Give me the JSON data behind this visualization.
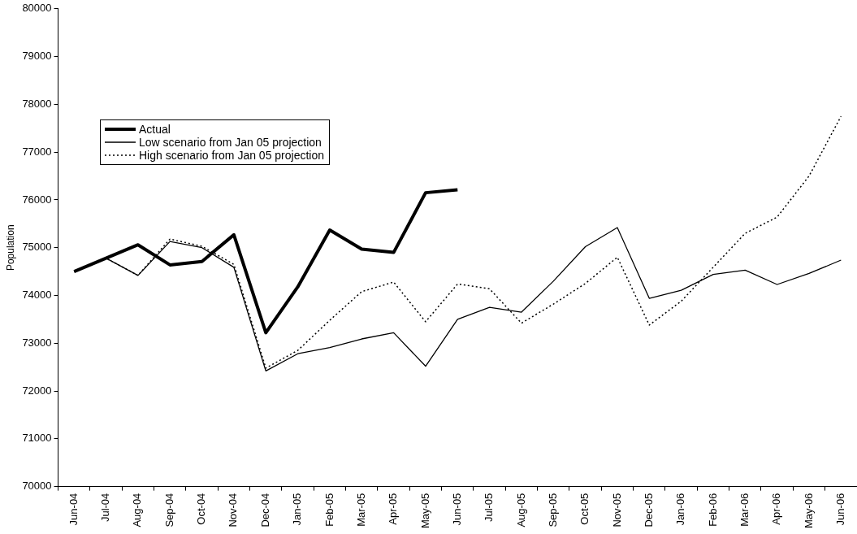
{
  "chart_data": {
    "type": "line",
    "ylabel": "Population",
    "categories": [
      "Jun-04",
      "Jul-04",
      "Aug-04",
      "Sep-04",
      "Oct-04",
      "Nov-04",
      "Dec-04",
      "Jan-05",
      "Feb-05",
      "Mar-05",
      "Apr-05",
      "May-05",
      "Jun-05",
      "Jul-05",
      "Aug-05",
      "Sep-05",
      "Oct-05",
      "Nov-05",
      "Dec-05",
      "Jan-06",
      "Feb-06",
      "Mar-06",
      "Apr-06",
      "May-06",
      "Jun-06"
    ],
    "series": [
      {
        "name": "Actual",
        "color": "#000000",
        "line_style": "solid",
        "values": [
          74500,
          74780,
          75060,
          74640,
          74710,
          75270,
          73220,
          74180,
          75370,
          74970,
          74900,
          76150,
          76210,
          null,
          null,
          null,
          null,
          null,
          null,
          null,
          null,
          null,
          null,
          null,
          null
        ]
      },
      {
        "name": "Low scenario from Jan 05 projection",
        "color": "#000000",
        "line_style": "solid",
        "values": [
          74500,
          74780,
          74420,
          75130,
          75000,
          74590,
          72420,
          72780,
          72910,
          73090,
          73220,
          72520,
          73500,
          73750,
          73650,
          74300,
          75020,
          75420,
          73940,
          74110,
          74440,
          74530,
          74230,
          74460,
          74740
        ]
      },
      {
        "name": "High scenario from Jan 05 projection",
        "color": "#000000",
        "line_style": "dotted",
        "values": [
          74500,
          74780,
          74420,
          75180,
          75030,
          74650,
          72480,
          72850,
          73480,
          74080,
          74280,
          73450,
          74240,
          74140,
          73420,
          73820,
          74250,
          74800,
          73380,
          73880,
          74590,
          75300,
          75640,
          76500,
          77750
        ]
      }
    ],
    "ylim": [
      70000,
      80000
    ],
    "yticks": [
      70000,
      71000,
      72000,
      73000,
      74000,
      75000,
      76000,
      77000,
      78000,
      79000,
      80000
    ],
    "grid": false,
    "legend": "top left",
    "marker": "none"
  }
}
